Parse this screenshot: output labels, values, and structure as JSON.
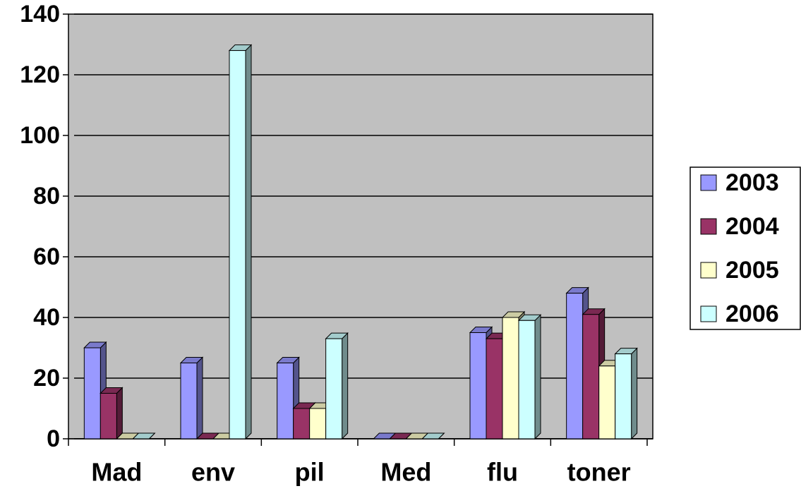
{
  "chart_data": {
    "type": "bar3d",
    "categories": [
      "Mad",
      "env",
      "pil",
      "Med",
      "flu",
      "toner"
    ],
    "series": [
      {
        "name": "2003",
        "color": "#9999ff",
        "values": [
          30,
          25,
          25,
          0,
          35,
          48
        ]
      },
      {
        "name": "2004",
        "color": "#993366",
        "values": [
          15,
          0,
          10,
          0,
          33,
          41
        ]
      },
      {
        "name": "2005",
        "color": "#ffffcc",
        "values": [
          0,
          0,
          10,
          0,
          40,
          24
        ]
      },
      {
        "name": "2006",
        "color": "#ccffff",
        "values": [
          0,
          128,
          33,
          0,
          39,
          28
        ]
      }
    ],
    "ylim": [
      0,
      140
    ],
    "yticks": [
      0,
      20,
      40,
      60,
      80,
      100,
      120,
      140
    ],
    "grid": true,
    "legend": "right",
    "plot_background": "#c0c0c0"
  }
}
